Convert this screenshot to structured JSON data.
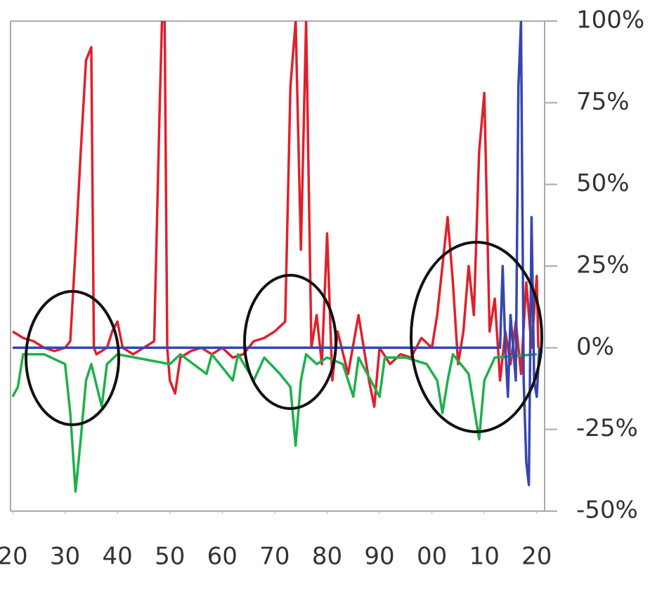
{
  "chart_data": {
    "type": "line",
    "xlim": [
      1919.6,
      2021.5
    ],
    "ylim": [
      -50,
      100
    ],
    "xticks": [
      {
        "value": 1920,
        "label": "20"
      },
      {
        "value": 1930,
        "label": "30"
      },
      {
        "value": 1940,
        "label": "40"
      },
      {
        "value": 1950,
        "label": "50"
      },
      {
        "value": 1960,
        "label": "60"
      },
      {
        "value": 1970,
        "label": "70"
      },
      {
        "value": 1980,
        "label": "80"
      },
      {
        "value": 1990,
        "label": "90"
      },
      {
        "value": 2000,
        "label": "00"
      },
      {
        "value": 2010,
        "label": "10"
      },
      {
        "value": 2020,
        "label": "20"
      }
    ],
    "yticks": [
      {
        "value": 100,
        "label": "100%"
      },
      {
        "value": 75,
        "label": "75%"
      },
      {
        "value": 50,
        "label": "50%"
      },
      {
        "value": 25,
        "label": "25%"
      },
      {
        "value": 0,
        "label": "0%"
      },
      {
        "value": -25,
        "label": "-25%"
      },
      {
        "value": -50,
        "label": "-50%"
      }
    ],
    "series": [
      {
        "color": "#e0202a",
        "x": [
          1920,
          1922,
          1924,
          1926,
          1928,
          1930,
          1931,
          1932,
          1933,
          1934,
          1935,
          1935.5,
          1936,
          1938,
          1939,
          1940,
          1941,
          1943,
          1945,
          1947,
          1948,
          1948.5,
          1949,
          1949.5,
          1950,
          1951,
          1952,
          1954,
          1956,
          1958,
          1960,
          1962,
          1964,
          1966,
          1968,
          1970,
          1972,
          1973,
          1974,
          1975,
          1976,
          1977,
          1978,
          1979,
          1980,
          1981,
          1982,
          1984,
          1986,
          1988,
          1989,
          1990,
          1992,
          1994,
          1996,
          1998,
          2000,
          2001,
          2002,
          2003,
          2004,
          2005,
          2006,
          2007,
          2008,
          2009,
          2010,
          2011,
          2012,
          2013,
          2014,
          2015,
          2016,
          2017,
          2018,
          2019,
          2020,
          2020.3
        ],
        "values": [
          5,
          3,
          2,
          0,
          -1,
          0,
          2,
          30,
          60,
          88,
          92,
          0,
          -2,
          0,
          5,
          8,
          0,
          -2,
          0,
          2,
          70,
          100,
          100,
          0,
          -10,
          -14,
          -3,
          -1,
          0,
          -2,
          0,
          -3,
          -2,
          2,
          3,
          5,
          8,
          80,
          100,
          30,
          100,
          0,
          10,
          -5,
          35,
          -10,
          5,
          -8,
          10,
          -10,
          -18,
          0,
          -5,
          -2,
          -3,
          3,
          0,
          10,
          25,
          40,
          20,
          -5,
          5,
          25,
          10,
          60,
          78,
          5,
          15,
          -10,
          5,
          -5,
          8,
          -8,
          20,
          0,
          22,
          0
        ]
      },
      {
        "color": "#1db04a",
        "x": [
          1920,
          1921,
          1922,
          1926,
          1930,
          1931,
          1932,
          1933,
          1934,
          1935,
          1937,
          1938,
          1940,
          1950,
          1952,
          1957,
          1958,
          1962,
          1963,
          1966,
          1968,
          1971,
          1973,
          1974,
          1975,
          1976,
          1978,
          1980,
          1983,
          1985,
          1986,
          1990,
          1991,
          1995,
          1999,
          2001,
          2002,
          2003,
          2004,
          2007,
          2009,
          2010,
          2012,
          2020
        ],
        "values": [
          -15,
          -12,
          -2,
          -2,
          -5,
          -20,
          -44,
          -28,
          -10,
          -5,
          -18,
          -5,
          -2,
          -5,
          -2,
          -8,
          -2,
          -10,
          -2,
          -10,
          -3,
          -8,
          -12,
          -30,
          -10,
          -2,
          -5,
          -3,
          -5,
          -15,
          -3,
          -15,
          -3,
          -3,
          -5,
          -10,
          -20,
          -10,
          -2,
          -8,
          -28,
          -10,
          -3,
          -2
        ]
      },
      {
        "color": "#3646b0",
        "x": [
          1920,
          2013,
          2013.5,
          2014,
          2014.5,
          2015,
          2016,
          2016.5,
          2017,
          2017.5,
          2018,
          2018.5,
          2019,
          2019.5,
          2020,
          2020.5
        ],
        "values": [
          0,
          0,
          25,
          0,
          -15,
          10,
          -10,
          80,
          100,
          -10,
          -35,
          -42,
          40,
          -10,
          -15,
          0
        ]
      }
    ]
  }
}
